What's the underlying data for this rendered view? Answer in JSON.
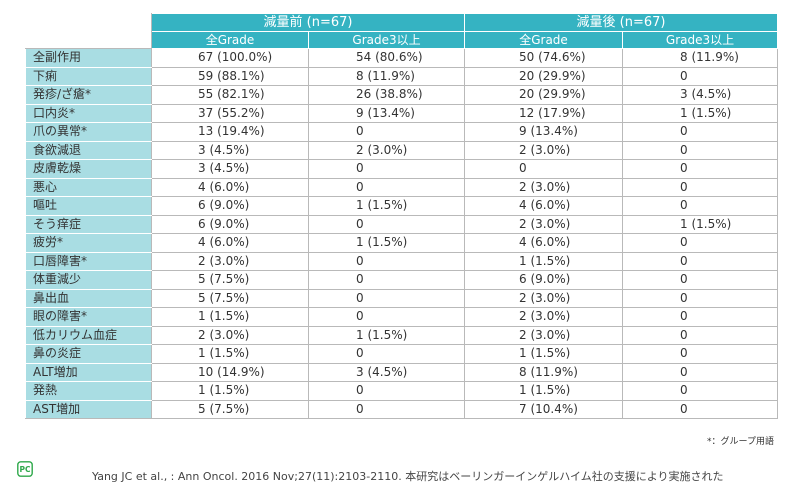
{
  "header": {
    "group1": "減量前 (n=67)",
    "group2": "減量後 (n=67)",
    "sub": [
      "全Grade",
      "Grade3以上",
      "全Grade",
      "Grade3以上"
    ]
  },
  "rows": [
    {
      "label": "全副作用",
      "v": [
        "67 (100.0%)",
        "54 (80.6%)",
        "50 (74.6%)",
        "8 (11.9%)"
      ]
    },
    {
      "label": "下痢",
      "v": [
        "59 (88.1%)",
        "8 (11.9%)",
        "20 (29.9%)",
        "0"
      ]
    },
    {
      "label": "発疹/ざ瘡*",
      "v": [
        "55 (82.1%)",
        "26 (38.8%)",
        "20 (29.9%)",
        "3 (4.5%)"
      ]
    },
    {
      "label": "口内炎*",
      "v": [
        "37 (55.2%)",
        "9 (13.4%)",
        "12 (17.9%)",
        "1 (1.5%)"
      ]
    },
    {
      "label": "爪の異常*",
      "v": [
        "13 (19.4%)",
        "0",
        "9 (13.4%)",
        "0"
      ]
    },
    {
      "label": "食欲減退",
      "v": [
        "3 (4.5%)",
        "2 (3.0%)",
        "2 (3.0%)",
        "0"
      ]
    },
    {
      "label": "皮膚乾燥",
      "v": [
        "3 (4.5%)",
        "0",
        "0",
        "0"
      ]
    },
    {
      "label": "悪心",
      "v": [
        "4 (6.0%)",
        "0",
        "2 (3.0%)",
        "0"
      ]
    },
    {
      "label": "嘔吐",
      "v": [
        "6 (9.0%)",
        "1 (1.5%)",
        "4 (6.0%)",
        "0"
      ]
    },
    {
      "label": "そう痒症",
      "v": [
        "6 (9.0%)",
        "0",
        "2 (3.0%)",
        "1 (1.5%)"
      ]
    },
    {
      "label": "疲労*",
      "v": [
        "4 (6.0%)",
        "1 (1.5%)",
        "4 (6.0%)",
        "0"
      ]
    },
    {
      "label": "口唇障害*",
      "v": [
        "2 (3.0%)",
        "0",
        "1 (1.5%)",
        "0"
      ]
    },
    {
      "label": "体重減少",
      "v": [
        "5 (7.5%)",
        "0",
        "6 (9.0%)",
        "0"
      ]
    },
    {
      "label": "鼻出血",
      "v": [
        "5 (7.5%)",
        "0",
        "2 (3.0%)",
        "0"
      ]
    },
    {
      "label": "眼の障害*",
      "v": [
        "1 (1.5%)",
        "0",
        "2 (3.0%)",
        "0"
      ]
    },
    {
      "label": "低カリウム血症",
      "v": [
        "2 (3.0%)",
        "1 (1.5%)",
        "2 (3.0%)",
        "0"
      ]
    },
    {
      "label": "鼻の炎症",
      "v": [
        "1 (1.5%)",
        "0",
        "1 (1.5%)",
        "0"
      ]
    },
    {
      "label": "ALT増加",
      "v": [
        "10 (14.9%)",
        "3 (4.5%)",
        "8 (11.9%)",
        "0"
      ]
    },
    {
      "label": "発熱",
      "v": [
        "1 (1.5%)",
        "0",
        "1 (1.5%)",
        "0"
      ]
    },
    {
      "label": "AST増加",
      "v": [
        "5 (7.5%)",
        "0",
        "7 (10.4%)",
        "0"
      ]
    }
  ],
  "note": "*：グループ用語",
  "logo_icon": "pc-logo-icon",
  "footer": "Yang JC et al., : Ann Oncol. 2016 Nov;27(11):2103-2110. 本研究はベーリンガーインゲルハイム社の支援により実施された",
  "colors": {
    "header": "#35b3c2",
    "label": "#a9dde3",
    "logo": "#2ea84a"
  }
}
